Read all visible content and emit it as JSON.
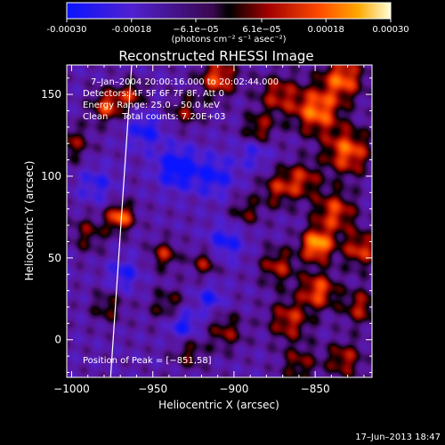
{
  "chart_data": {
    "type": "heatmap",
    "title": "Reconstructed RHESSI Image",
    "xlabel": "Heliocentric X (arcsec)",
    "ylabel": "Heliocentric Y (arcsec)",
    "xlim": [
      -1003,
      -815
    ],
    "ylim": [
      -23,
      168
    ],
    "x_ticks": [
      -1000,
      -950,
      -900,
      -850
    ],
    "x_tick_labels": [
      "−1000",
      "−950",
      "−900",
      "−850"
    ],
    "y_ticks": [
      0,
      50,
      100,
      150
    ],
    "y_tick_labels": [
      "0",
      "50",
      "100",
      "150"
    ],
    "colorbar": {
      "range": [
        -0.0003,
        0.0003
      ],
      "ticks": [
        -0.0003,
        -0.00018,
        -6.1e-05,
        6.1e-05,
        0.00018,
        0.0003
      ],
      "tick_labels": [
        "-0.00030",
        "-0.00018",
        "−6.1e−05",
        "6.1e−05",
        "0.00018",
        "0.00030"
      ],
      "units": "(photons cm⁻² s⁻¹ asec⁻²)"
    },
    "annotations": {
      "time_range": "7–Jan–2004 20:00:16.000 to 20:02:44.000",
      "detectors": "Detectors: 4F 5F 6F 7F 8F, Att 0",
      "energy": "Energy Range: 25.0 – 50.0 keV",
      "method": "Clean     Total counts: 7.20E+03",
      "peak": "Position of Peak = [−851,58]"
    },
    "peak": {
      "x": -851,
      "y": 58
    },
    "limb_line": {
      "x1": -976,
      "y1": -23,
      "x2": -963,
      "y2": 168
    },
    "bright_sources": [
      {
        "x": -849,
        "y": 58,
        "amp": 1.0,
        "s": 7
      },
      {
        "x": -849,
        "y": 140,
        "amp": 0.85,
        "s": 10
      },
      {
        "x": -830,
        "y": 115,
        "amp": 0.8,
        "s": 10
      },
      {
        "x": -833,
        "y": 160,
        "amp": 0.8,
        "s": 9
      },
      {
        "x": -848,
        "y": 30,
        "amp": 0.75,
        "s": 8
      },
      {
        "x": -838,
        "y": 78,
        "amp": 0.7,
        "s": 9
      },
      {
        "x": -866,
        "y": 12,
        "amp": 0.6,
        "s": 9
      },
      {
        "x": -873,
        "y": 45,
        "amp": 0.55,
        "s": 8
      },
      {
        "x": -873,
        "y": 92,
        "amp": 0.5,
        "s": 8
      },
      {
        "x": -873,
        "y": 150,
        "amp": 0.55,
        "s": 9
      },
      {
        "x": -858,
        "y": 98,
        "amp": 0.55,
        "s": 8
      },
      {
        "x": -822,
        "y": 55,
        "amp": 0.65,
        "s": 8
      },
      {
        "x": -822,
        "y": 20,
        "amp": 0.55,
        "s": 8
      },
      {
        "x": -832,
        "y": -12,
        "amp": 0.55,
        "s": 8
      },
      {
        "x": -860,
        "y": -15,
        "amp": 0.45,
        "s": 8
      },
      {
        "x": -910,
        "y": 160,
        "amp": 0.75,
        "s": 8
      },
      {
        "x": -885,
        "y": 128,
        "amp": 0.55,
        "s": 7
      },
      {
        "x": -930,
        "y": 140,
        "amp": 0.45,
        "s": 7
      },
      {
        "x": -978,
        "y": 143,
        "amp": 0.7,
        "s": 7
      },
      {
        "x": -963,
        "y": 150,
        "amp": 0.55,
        "s": 6
      },
      {
        "x": -970,
        "y": 75,
        "amp": 0.85,
        "s": 6
      },
      {
        "x": -943,
        "y": 52,
        "amp": 0.55,
        "s": 6
      },
      {
        "x": -918,
        "y": 47,
        "amp": 0.5,
        "s": 6
      },
      {
        "x": -1000,
        "y": 120,
        "amp": 0.45,
        "s": 8
      },
      {
        "x": -990,
        "y": 65,
        "amp": 0.4,
        "s": 8
      },
      {
        "x": -940,
        "y": 20,
        "amp": 0.45,
        "s": 8
      },
      {
        "x": -905,
        "y": 5,
        "amp": 0.45,
        "s": 8
      },
      {
        "x": -928,
        "y": -8,
        "amp": 0.4,
        "s": 7
      },
      {
        "x": -978,
        "y": 20,
        "amp": 0.4,
        "s": 7
      },
      {
        "x": -893,
        "y": 78,
        "amp": 0.4,
        "s": 7
      }
    ],
    "dark_sources": [
      {
        "x": -935,
        "y": 105,
        "amp": 0.7,
        "s": 9
      },
      {
        "x": -955,
        "y": 128,
        "amp": 0.5,
        "s": 8
      },
      {
        "x": -912,
        "y": 100,
        "amp": 0.5,
        "s": 9
      },
      {
        "x": -932,
        "y": 10,
        "amp": 0.6,
        "s": 7
      },
      {
        "x": -905,
        "y": 60,
        "amp": 0.5,
        "s": 8
      },
      {
        "x": -968,
        "y": 40,
        "amp": 0.45,
        "s": 7
      },
      {
        "x": -985,
        "y": 95,
        "amp": 0.4,
        "s": 8
      },
      {
        "x": -915,
        "y": 25,
        "amp": 0.45,
        "s": 6
      },
      {
        "x": -888,
        "y": 115,
        "amp": 0.4,
        "s": 7
      }
    ]
  },
  "footer": {
    "date": "17–Jun–2013 18:47"
  }
}
